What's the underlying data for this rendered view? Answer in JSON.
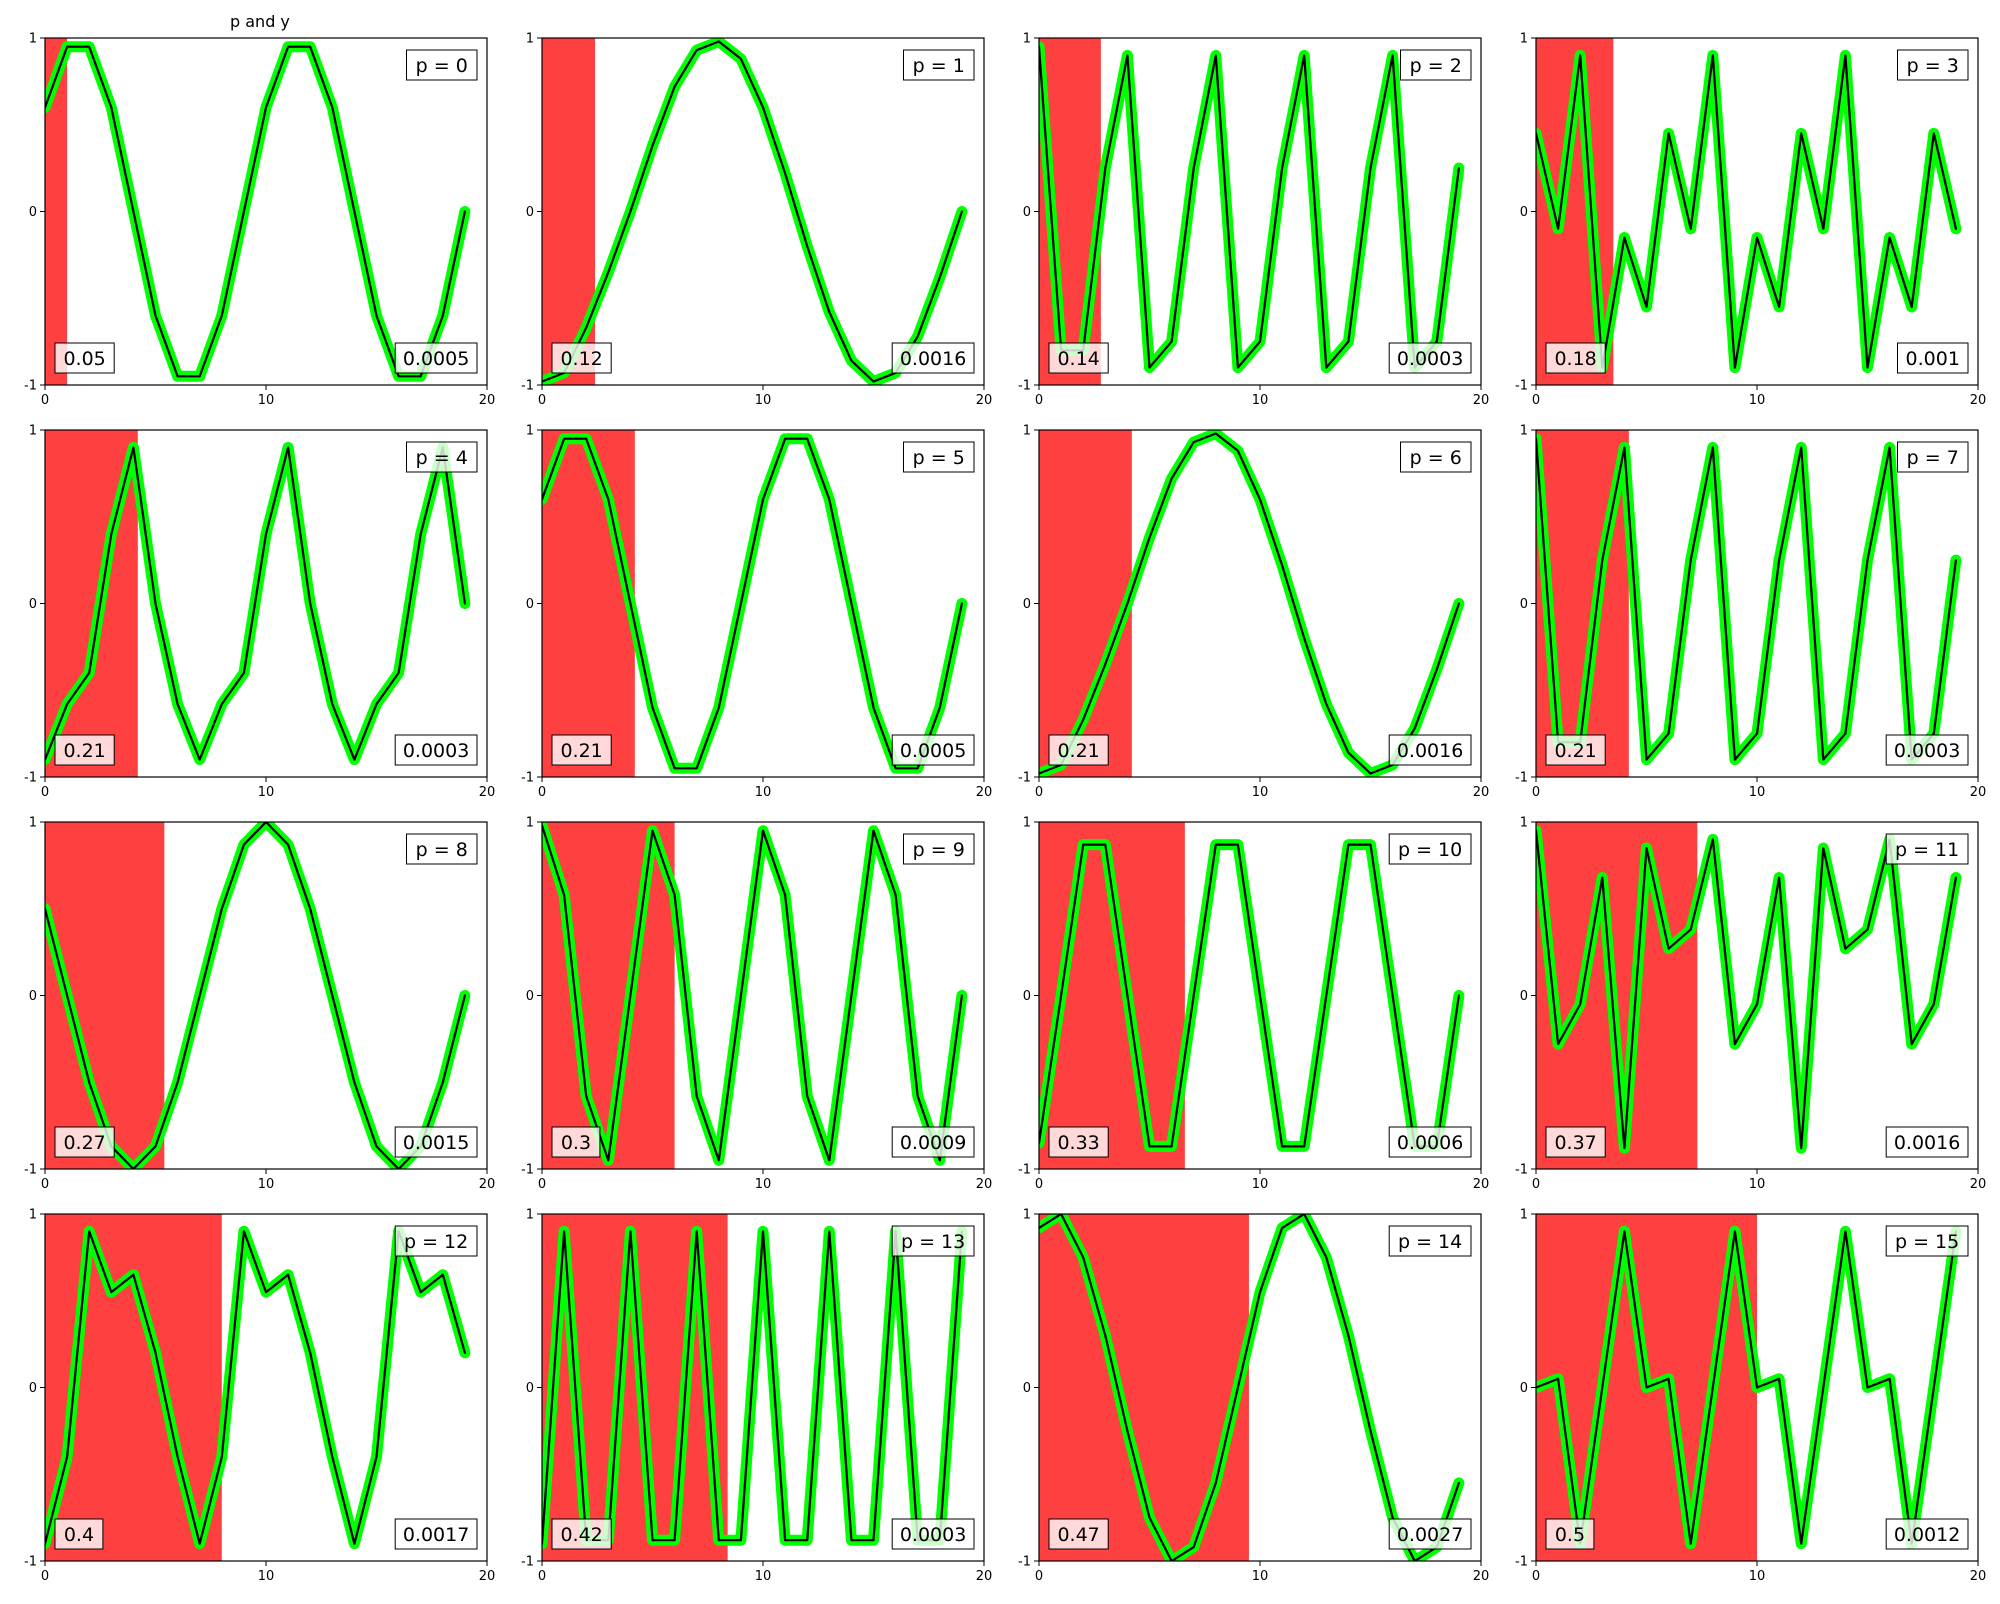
{
  "figure": {
    "suptitle": "p and y"
  },
  "colors": {
    "band": "#ff0000",
    "outer_line": "#00ff00",
    "inner_line": "#000000",
    "frame": "#000000"
  },
  "chart_data": [
    {
      "type": "line",
      "panel_label": "p = 0",
      "left_value": "0.05",
      "right_value": "0.0005",
      "shade_x": [
        0,
        1.0
      ],
      "xlim": [
        0,
        20
      ],
      "ylim": [
        -1,
        1
      ],
      "xticks": [
        "0",
        "10",
        "20"
      ],
      "yticks": [
        "-1",
        "0",
        "1"
      ],
      "grid": false,
      "legend": "none",
      "x": [
        0,
        1,
        2,
        3,
        4,
        5,
        6,
        7,
        8,
        9,
        10,
        11,
        12,
        13,
        14,
        15,
        16,
        17,
        18,
        19
      ],
      "y": [
        0.6,
        0.95,
        0.95,
        0.6,
        0.0,
        -0.6,
        -0.95,
        -0.95,
        -0.6,
        0.0,
        0.6,
        0.95,
        0.95,
        0.6,
        0.0,
        -0.6,
        -0.95,
        -0.95,
        -0.6,
        0.0
      ]
    },
    {
      "type": "line",
      "panel_label": "p = 1",
      "left_value": "0.12",
      "right_value": "0.0016",
      "shade_x": [
        0,
        2.4
      ],
      "xlim": [
        0,
        20
      ],
      "ylim": [
        -1,
        1
      ],
      "xticks": [
        "0",
        "10",
        "20"
      ],
      "yticks": [
        "-1",
        "0",
        "1"
      ],
      "grid": false,
      "legend": "none",
      "x": [
        0,
        1,
        2,
        3,
        4,
        5,
        6,
        7,
        8,
        9,
        10,
        11,
        12,
        13,
        14,
        15,
        16,
        17,
        18,
        19
      ],
      "y": [
        -0.98,
        -0.93,
        -0.67,
        -0.35,
        0.0,
        0.38,
        0.72,
        0.93,
        0.98,
        0.88,
        0.6,
        0.22,
        -0.2,
        -0.58,
        -0.86,
        -0.98,
        -0.93,
        -0.72,
        -0.38,
        0.0
      ]
    },
    {
      "type": "line",
      "panel_label": "p = 2",
      "left_value": "0.14",
      "right_value": "0.0003",
      "shade_x": [
        0,
        2.8
      ],
      "xlim": [
        0,
        20
      ],
      "ylim": [
        -1,
        1
      ],
      "xticks": [
        "0",
        "10",
        "20"
      ],
      "yticks": [
        "-1",
        "0",
        "1"
      ],
      "grid": false,
      "legend": "none",
      "x": [
        0,
        1,
        2,
        3,
        4,
        5,
        6,
        7,
        8,
        9,
        10,
        11,
        12,
        13,
        14,
        15,
        16,
        17,
        18,
        19
      ],
      "y": [
        0.95,
        -0.8,
        -0.8,
        0.25,
        0.9,
        -0.9,
        -0.75,
        0.25,
        0.9,
        -0.9,
        -0.75,
        0.25,
        0.9,
        -0.9,
        -0.75,
        0.25,
        0.9,
        -0.9,
        -0.75,
        0.25
      ]
    },
    {
      "type": "line",
      "panel_label": "p = 3",
      "left_value": "0.18",
      "right_value": "0.001",
      "shade_x": [
        0,
        3.5
      ],
      "xlim": [
        0,
        20
      ],
      "ylim": [
        -1,
        1
      ],
      "xticks": [
        "0",
        "10",
        "20"
      ],
      "yticks": [
        "-1",
        "0",
        "1"
      ],
      "grid": false,
      "legend": "none",
      "x": [
        0,
        1,
        2,
        3,
        4,
        5,
        6,
        7,
        8,
        9,
        10,
        11,
        12,
        13,
        14,
        15,
        16,
        17,
        18,
        19
      ],
      "y": [
        0.45,
        -0.1,
        0.9,
        -0.9,
        -0.15,
        -0.55,
        0.45,
        -0.1,
        0.9,
        -0.9,
        -0.15,
        -0.55,
        0.45,
        -0.1,
        0.9,
        -0.9,
        -0.15,
        -0.55,
        0.45,
        -0.1
      ]
    },
    {
      "type": "line",
      "panel_label": "p = 4",
      "left_value": "0.21",
      "right_value": "0.0003",
      "shade_x": [
        0,
        4.2
      ],
      "xlim": [
        0,
        20
      ],
      "ylim": [
        -1,
        1
      ],
      "xticks": [
        "0",
        "10",
        "20"
      ],
      "yticks": [
        "-1",
        "0",
        "1"
      ],
      "grid": false,
      "legend": "none",
      "x": [
        0,
        1,
        2,
        3,
        4,
        5,
        6,
        7,
        8,
        9,
        10,
        11,
        12,
        13,
        14,
        15,
        16,
        17,
        18,
        19
      ],
      "y": [
        -0.9,
        -0.58,
        -0.4,
        0.4,
        0.9,
        0.0,
        -0.58,
        -0.9,
        -0.58,
        -0.4,
        0.4,
        0.9,
        0.0,
        -0.58,
        -0.9,
        -0.58,
        -0.4,
        0.4,
        0.9,
        0.0
      ]
    },
    {
      "type": "line",
      "panel_label": "p = 5",
      "left_value": "0.21",
      "right_value": "0.0005",
      "shade_x": [
        0,
        4.2
      ],
      "xlim": [
        0,
        20
      ],
      "ylim": [
        -1,
        1
      ],
      "xticks": [
        "0",
        "10",
        "20"
      ],
      "yticks": [
        "-1",
        "0",
        "1"
      ],
      "grid": false,
      "legend": "none",
      "x": [
        0,
        1,
        2,
        3,
        4,
        5,
        6,
        7,
        8,
        9,
        10,
        11,
        12,
        13,
        14,
        15,
        16,
        17,
        18,
        19
      ],
      "y": [
        0.6,
        0.95,
        0.95,
        0.6,
        0.0,
        -0.6,
        -0.95,
        -0.95,
        -0.6,
        0.0,
        0.6,
        0.95,
        0.95,
        0.6,
        0.0,
        -0.6,
        -0.95,
        -0.95,
        -0.6,
        0.0
      ]
    },
    {
      "type": "line",
      "panel_label": "p = 6",
      "left_value": "0.21",
      "right_value": "0.0016",
      "shade_x": [
        0,
        4.2
      ],
      "xlim": [
        0,
        20
      ],
      "ylim": [
        -1,
        1
      ],
      "xticks": [
        "0",
        "10",
        "20"
      ],
      "yticks": [
        "-1",
        "0",
        "1"
      ],
      "grid": false,
      "legend": "none",
      "x": [
        0,
        1,
        2,
        3,
        4,
        5,
        6,
        7,
        8,
        9,
        10,
        11,
        12,
        13,
        14,
        15,
        16,
        17,
        18,
        19
      ],
      "y": [
        -0.98,
        -0.93,
        -0.67,
        -0.35,
        0.0,
        0.38,
        0.72,
        0.93,
        0.98,
        0.88,
        0.6,
        0.22,
        -0.2,
        -0.58,
        -0.86,
        -0.98,
        -0.93,
        -0.72,
        -0.38,
        0.0
      ]
    },
    {
      "type": "line",
      "panel_label": "p = 7",
      "left_value": "0.21",
      "right_value": "0.0003",
      "shade_x": [
        0,
        4.2
      ],
      "xlim": [
        0,
        20
      ],
      "ylim": [
        -1,
        1
      ],
      "xticks": [
        "0",
        "10",
        "20"
      ],
      "yticks": [
        "-1",
        "0",
        "1"
      ],
      "grid": false,
      "legend": "none",
      "x": [
        0,
        1,
        2,
        3,
        4,
        5,
        6,
        7,
        8,
        9,
        10,
        11,
        12,
        13,
        14,
        15,
        16,
        17,
        18,
        19
      ],
      "y": [
        0.95,
        -0.8,
        -0.8,
        0.25,
        0.9,
        -0.9,
        -0.75,
        0.25,
        0.9,
        -0.9,
        -0.75,
        0.25,
        0.9,
        -0.9,
        -0.75,
        0.25,
        0.9,
        -0.9,
        -0.75,
        0.25
      ]
    },
    {
      "type": "line",
      "panel_label": "p = 8",
      "left_value": "0.27",
      "right_value": "0.0015",
      "shade_x": [
        0,
        5.4
      ],
      "xlim": [
        0,
        20
      ],
      "ylim": [
        -1,
        1
      ],
      "xticks": [
        "0",
        "10",
        "20"
      ],
      "yticks": [
        "-1",
        "0",
        "1"
      ],
      "grid": false,
      "legend": "none",
      "x": [
        0,
        1,
        2,
        3,
        4,
        5,
        6,
        7,
        8,
        9,
        10,
        11,
        12,
        13,
        14,
        15,
        16,
        17,
        18,
        19
      ],
      "y": [
        0.5,
        0.0,
        -0.5,
        -0.87,
        -1.0,
        -0.87,
        -0.5,
        0.0,
        0.5,
        0.87,
        1.0,
        0.87,
        0.5,
        0.0,
        -0.5,
        -0.87,
        -1.0,
        -0.87,
        -0.5,
        0.0
      ]
    },
    {
      "type": "line",
      "panel_label": "p = 9",
      "left_value": "0.3",
      "right_value": "0.0009",
      "shade_x": [
        0,
        6.0
      ],
      "xlim": [
        0,
        20
      ],
      "ylim": [
        -1,
        1
      ],
      "xticks": [
        "0",
        "10",
        "20"
      ],
      "yticks": [
        "-1",
        "0",
        "1"
      ],
      "grid": false,
      "legend": "none",
      "x": [
        0,
        1,
        2,
        3,
        4,
        5,
        6,
        7,
        8,
        9,
        10,
        11,
        12,
        13,
        14,
        15,
        16,
        17,
        18,
        19
      ],
      "y": [
        0.98,
        0.58,
        -0.58,
        -0.95,
        0.0,
        0.95,
        0.58,
        -0.58,
        -0.95,
        0.0,
        0.95,
        0.58,
        -0.58,
        -0.95,
        0.0,
        0.95,
        0.58,
        -0.58,
        -0.95,
        0.0
      ]
    },
    {
      "type": "line",
      "panel_label": "p = 10",
      "left_value": "0.33",
      "right_value": "0.0006",
      "shade_x": [
        0,
        6.6
      ],
      "xlim": [
        0,
        20
      ],
      "ylim": [
        -1,
        1
      ],
      "xticks": [
        "0",
        "10",
        "20"
      ],
      "yticks": [
        "-1",
        "0",
        "1"
      ],
      "grid": false,
      "legend": "none",
      "x": [
        0,
        1,
        2,
        3,
        4,
        5,
        6,
        7,
        8,
        9,
        10,
        11,
        12,
        13,
        14,
        15,
        16,
        17,
        18,
        19
      ],
      "y": [
        -0.85,
        0.0,
        0.87,
        0.87,
        0.0,
        -0.87,
        -0.87,
        0.0,
        0.87,
        0.87,
        0.0,
        -0.87,
        -0.87,
        0.0,
        0.87,
        0.87,
        0.0,
        -0.87,
        -0.87,
        0.0
      ]
    },
    {
      "type": "line",
      "panel_label": "p = 11",
      "left_value": "0.37",
      "right_value": "0.0016",
      "shade_x": [
        0,
        7.3
      ],
      "xlim": [
        0,
        20
      ],
      "ylim": [
        -1,
        1
      ],
      "xticks": [
        "0",
        "10",
        "20"
      ],
      "yticks": [
        "-1",
        "0",
        "1"
      ],
      "grid": false,
      "legend": "none",
      "x": [
        0,
        1,
        2,
        3,
        4,
        5,
        6,
        7,
        8,
        9,
        10,
        11,
        12,
        13,
        14,
        15,
        16,
        17,
        18,
        19
      ],
      "y": [
        0.95,
        -0.28,
        -0.05,
        0.68,
        -0.88,
        0.85,
        0.27,
        0.38,
        0.9,
        -0.28,
        -0.05,
        0.68,
        -0.88,
        0.85,
        0.27,
        0.38,
        0.9,
        -0.28,
        -0.05,
        0.68
      ]
    },
    {
      "type": "line",
      "panel_label": "p = 12",
      "left_value": "0.4",
      "right_value": "0.0017",
      "shade_x": [
        0,
        8.0
      ],
      "xlim": [
        0,
        20
      ],
      "ylim": [
        -1,
        1
      ],
      "xticks": [
        "0",
        "10",
        "20"
      ],
      "yticks": [
        "-1",
        "0",
        "1"
      ],
      "grid": false,
      "legend": "none",
      "x": [
        0,
        1,
        2,
        3,
        4,
        5,
        6,
        7,
        8,
        9,
        10,
        11,
        12,
        13,
        14,
        15,
        16,
        17,
        18,
        19
      ],
      "y": [
        -0.9,
        -0.4,
        0.9,
        0.55,
        0.65,
        0.2,
        -0.4,
        -0.9,
        -0.4,
        0.9,
        0.55,
        0.65,
        0.2,
        -0.4,
        -0.9,
        -0.4,
        0.9,
        0.55,
        0.65,
        0.2
      ]
    },
    {
      "type": "line",
      "panel_label": "p = 13",
      "left_value": "0.42",
      "right_value": "0.0003",
      "shade_x": [
        0,
        8.4
      ],
      "xlim": [
        0,
        20
      ],
      "ylim": [
        -1,
        1
      ],
      "xticks": [
        "0",
        "10",
        "20"
      ],
      "yticks": [
        "-1",
        "0",
        "1"
      ],
      "grid": false,
      "legend": "none",
      "x": [
        0,
        1,
        2,
        3,
        4,
        5,
        6,
        7,
        8,
        9,
        10,
        11,
        12,
        13,
        14,
        15,
        16,
        17,
        18,
        19
      ],
      "y": [
        -0.9,
        0.9,
        -0.88,
        -0.88,
        0.9,
        -0.88,
        -0.88,
        0.9,
        -0.88,
        -0.88,
        0.9,
        -0.88,
        -0.88,
        0.9,
        -0.88,
        -0.88,
        0.9,
        -0.88,
        -0.88,
        0.9
      ]
    },
    {
      "type": "line",
      "panel_label": "p = 14",
      "left_value": "0.47",
      "right_value": "0.0027",
      "shade_x": [
        0,
        9.5
      ],
      "xlim": [
        0,
        20
      ],
      "ylim": [
        -1,
        1
      ],
      "xticks": [
        "0",
        "10",
        "20"
      ],
      "yticks": [
        "-1",
        "0",
        "1"
      ],
      "grid": false,
      "legend": "none",
      "x": [
        0,
        1,
        2,
        3,
        4,
        5,
        6,
        7,
        8,
        9,
        10,
        11,
        12,
        13,
        14,
        15,
        16,
        17,
        18,
        19
      ],
      "y": [
        0.92,
        1.0,
        0.75,
        0.3,
        -0.25,
        -0.75,
        -1.0,
        -0.92,
        -0.55,
        0.0,
        0.55,
        0.92,
        1.0,
        0.75,
        0.3,
        -0.25,
        -0.75,
        -1.0,
        -0.92,
        -0.55
      ]
    },
    {
      "type": "line",
      "panel_label": "p = 15",
      "left_value": "0.5",
      "right_value": "0.0012",
      "shade_x": [
        0,
        10.0
      ],
      "xlim": [
        0,
        20
      ],
      "ylim": [
        -1,
        1
      ],
      "xticks": [
        "0",
        "10",
        "20"
      ],
      "yticks": [
        "-1",
        "0",
        "1"
      ],
      "grid": false,
      "legend": "none",
      "x": [
        0,
        1,
        2,
        3,
        4,
        5,
        6,
        7,
        8,
        9,
        10,
        11,
        12,
        13,
        14,
        15,
        16,
        17,
        18,
        19
      ],
      "y": [
        0.0,
        0.05,
        -0.9,
        0.0,
        0.9,
        0.0,
        0.05,
        -0.9,
        0.0,
        0.9,
        0.0,
        0.05,
        -0.9,
        0.0,
        0.9,
        0.0,
        0.05,
        -0.9,
        0.0,
        0.9
      ]
    }
  ]
}
